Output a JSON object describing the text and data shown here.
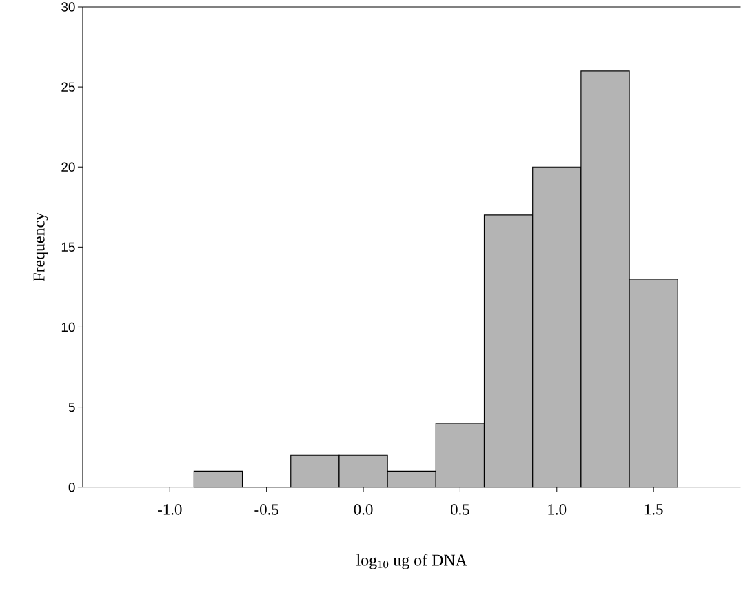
{
  "chart_data": {
    "type": "histogram",
    "xlabel": "log$_{10}$ ug of DNA",
    "ylabel": "Frequency",
    "bins": [
      -0.875,
      -0.625,
      -0.375,
      -0.125,
      0.125,
      0.375,
      0.625,
      0.875,
      1.125,
      1.375,
      1.625
    ],
    "values": [
      1,
      0,
      2,
      2,
      1,
      4,
      17,
      20,
      26,
      13
    ],
    "color": "#b4b4b4",
    "xlim": [
      -1.45,
      1.95
    ],
    "ylim": [
      0,
      30
    ],
    "xticks": [
      {
        "value": -1,
        "label": "-1.0"
      },
      {
        "value": -0.5,
        "label": "-0.5"
      },
      {
        "value": 0,
        "label": "0.0"
      },
      {
        "value": 0.5,
        "label": "0.5"
      },
      {
        "value": 1,
        "label": "1.0"
      },
      {
        "value": 1.5,
        "label": "1.5"
      }
    ],
    "yticks": [
      0,
      5,
      10,
      15,
      20,
      25,
      30
    ]
  }
}
